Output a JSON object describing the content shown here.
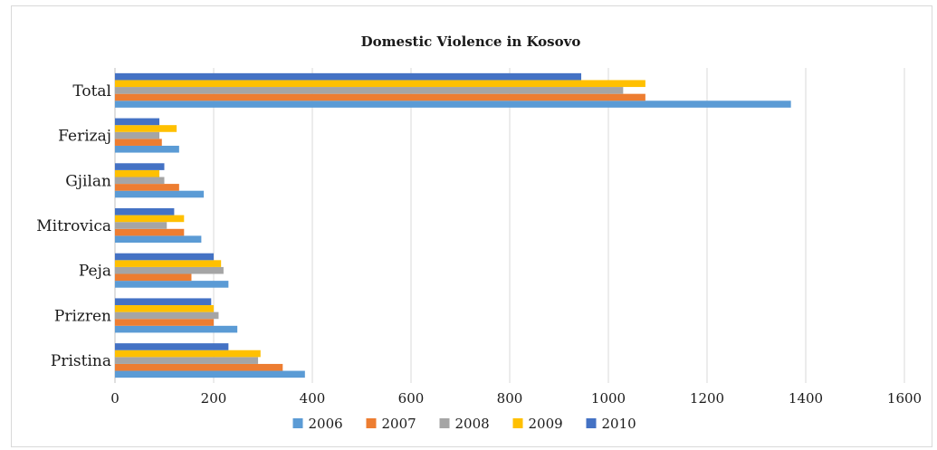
{
  "chart_data": {
    "type": "bar",
    "orientation": "horizontal",
    "title": "Domestic Violence in Kosovo",
    "categories": [
      "Pristina",
      "Prizren",
      "Peja",
      "Mitrovica",
      "Gjilan",
      "Ferizaj",
      "Total"
    ],
    "series": [
      {
        "name": "2006",
        "color": "#5b9bd5",
        "values": [
          385,
          248,
          230,
          175,
          180,
          130,
          1370
        ]
      },
      {
        "name": "2007",
        "color": "#ed7d31",
        "values": [
          340,
          200,
          155,
          140,
          130,
          95,
          1075
        ]
      },
      {
        "name": "2008",
        "color": "#a5a5a5",
        "values": [
          290,
          210,
          220,
          105,
          100,
          90,
          1030
        ]
      },
      {
        "name": "2009",
        "color": "#ffc000",
        "values": [
          295,
          200,
          215,
          140,
          90,
          125,
          1075
        ]
      },
      {
        "name": "2010",
        "color": "#4472c4",
        "values": [
          230,
          195,
          200,
          120,
          100,
          90,
          945
        ]
      }
    ],
    "xlim": [
      0,
      1600
    ],
    "xticks": [
      0,
      200,
      400,
      600,
      800,
      1000,
      1200,
      1400,
      1600
    ],
    "xlabel": "",
    "ylabel": "",
    "grid": "vertical",
    "legend_position": "bottom"
  }
}
